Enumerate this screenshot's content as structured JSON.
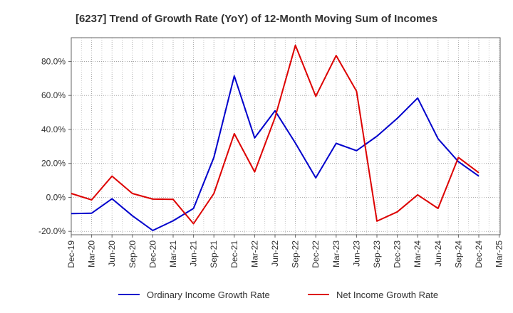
{
  "chart_data": {
    "type": "line",
    "title": "[6237]  Trend of Growth Rate (YoY) of 12-Month Moving Sum of Incomes",
    "x_labels": [
      "Dec-19",
      "Mar-20",
      "Jun-20",
      "Sep-20",
      "Dec-20",
      "Mar-21",
      "Jun-21",
      "Sep-21",
      "Dec-21",
      "Mar-22",
      "Jun-22",
      "Sep-22",
      "Dec-22",
      "Mar-23",
      "Jun-23",
      "Sep-23",
      "Dec-23",
      "Mar-24",
      "Jun-24",
      "Sep-24",
      "Dec-24",
      "Mar-25"
    ],
    "y_ticks": [
      "80.0%",
      "60.0%",
      "40.0%",
      "20.0%",
      "0.0%",
      "-20.0%"
    ],
    "y_tick_values": [
      80,
      60,
      40,
      20,
      0,
      -20
    ],
    "ylim": [
      -22,
      94
    ],
    "grid": true,
    "legend_position": "bottom",
    "series": [
      {
        "name": "Ordinary Income Growth Rate",
        "color": "#0000cc",
        "values": [
          -9.5,
          -9.3,
          -0.8,
          -10.8,
          -19.5,
          -13.8,
          -6.5,
          23.5,
          71.5,
          35.0,
          51.0,
          32.0,
          11.5,
          31.8,
          27.5,
          36.0,
          46.5,
          58.5,
          34.5,
          21.0,
          12.5,
          null
        ]
      },
      {
        "name": "Net Income Growth Rate",
        "color": "#dd0000",
        "values": [
          2.3,
          -1.5,
          12.5,
          2.3,
          -1.0,
          -1.2,
          -15.5,
          2.3,
          37.5,
          15.0,
          47.0,
          89.5,
          59.5,
          83.5,
          62.5,
          -14.0,
          -8.5,
          1.5,
          -6.5,
          23.5,
          14.5,
          null
        ]
      }
    ]
  }
}
